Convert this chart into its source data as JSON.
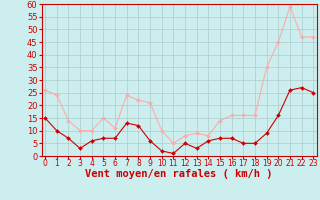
{
  "hours": [
    0,
    1,
    2,
    3,
    4,
    5,
    6,
    7,
    8,
    9,
    10,
    11,
    12,
    13,
    14,
    15,
    16,
    17,
    18,
    19,
    20,
    21,
    22,
    23
  ],
  "wind_avg": [
    15,
    10,
    7,
    3,
    6,
    7,
    7,
    13,
    12,
    6,
    2,
    1,
    5,
    3,
    6,
    7,
    7,
    5,
    5,
    9,
    16,
    26,
    27,
    25
  ],
  "wind_gust": [
    26,
    24,
    14,
    10,
    10,
    15,
    11,
    24,
    22,
    21,
    10,
    5,
    8,
    9,
    8,
    14,
    16,
    16,
    16,
    35,
    45,
    59,
    47,
    47
  ],
  "color_avg": "#cc0000",
  "color_gust": "#ffaaaa",
  "bg_color": "#cceeee",
  "grid_color": "#aacccc",
  "xlabel": "Vent moyen/en rafales ( km/h )",
  "ylim": [
    0,
    60
  ],
  "yticks": [
    0,
    5,
    10,
    15,
    20,
    25,
    30,
    35,
    40,
    45,
    50,
    55,
    60
  ],
  "tick_color": "#cc0000",
  "xlabel_color": "#cc0000",
  "xlabel_fontsize": 7.5,
  "ytick_fontsize": 6,
  "xtick_fontsize": 5.5,
  "spine_color": "#cc0000",
  "marker_size": 2.0,
  "line_width": 0.8
}
